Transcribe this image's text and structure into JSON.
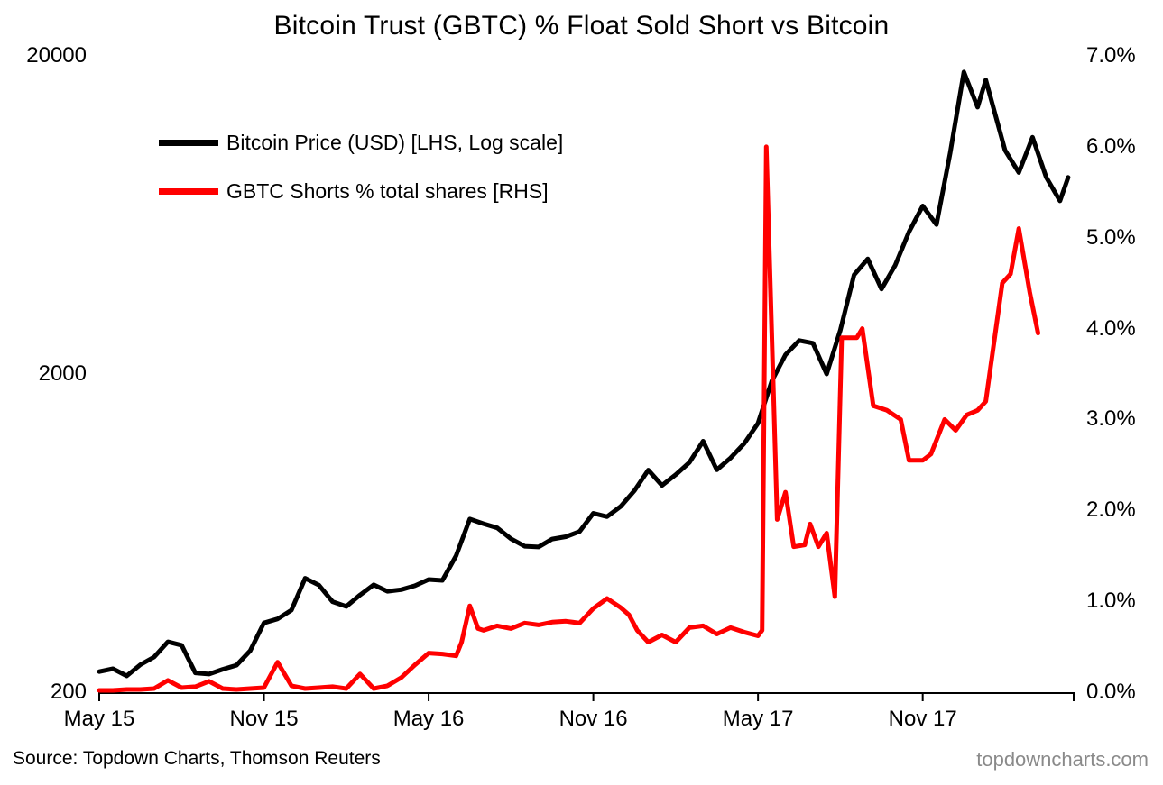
{
  "page": {
    "source_note": "Source: Topdown Charts, Thomson Reuters",
    "watermark": "topdowncharts.com"
  },
  "chart_data": {
    "type": "line",
    "title": "Bitcoin Trust (GBTC) % Float Sold Short vs Bitcoin",
    "grid": false,
    "legend_position": "inside-top-left",
    "colors": {
      "bitcoin": "#000000",
      "gbtc_shorts": "#ff0000",
      "axis": "#000000",
      "watermark": "#8a8a8a"
    },
    "x_axis": {
      "unit": "months-from-May-2015",
      "min": 0,
      "max": 35.5,
      "ticks": [
        {
          "t": 0,
          "label": "May 15"
        },
        {
          "t": 6,
          "label": "Nov 15"
        },
        {
          "t": 12,
          "label": "May 16"
        },
        {
          "t": 18,
          "label": "Nov 16"
        },
        {
          "t": 24,
          "label": "May 17"
        },
        {
          "t": 30,
          "label": "Nov 17"
        }
      ]
    },
    "y_left": {
      "scale": "log",
      "min": 200,
      "max": 20000,
      "ticks": [
        {
          "value": 20000,
          "label": "20000"
        },
        {
          "value": 2000,
          "label": "2000"
        },
        {
          "value": 200,
          "label": "200"
        }
      ]
    },
    "y_right": {
      "scale": "linear",
      "min": 0,
      "max": 7,
      "ticks": [
        {
          "value": 7,
          "label": "7.0%"
        },
        {
          "value": 6,
          "label": "6.0%"
        },
        {
          "value": 5,
          "label": "5.0%"
        },
        {
          "value": 4,
          "label": "4.0%"
        },
        {
          "value": 3,
          "label": "3.0%"
        },
        {
          "value": 2,
          "label": "2.0%"
        },
        {
          "value": 1,
          "label": "1.0%"
        },
        {
          "value": 0,
          "label": "0.0%"
        }
      ]
    },
    "series": [
      {
        "name": "Bitcoin Price (USD) [LHS, Log scale]",
        "axis": "left",
        "color": "#000000",
        "width": 5,
        "points": [
          [
            0,
            232
          ],
          [
            0.5,
            237
          ],
          [
            1,
            225
          ],
          [
            1.5,
            244
          ],
          [
            2,
            258
          ],
          [
            2.5,
            288
          ],
          [
            3,
            281
          ],
          [
            3.5,
            230
          ],
          [
            4,
            228
          ],
          [
            4.5,
            236
          ],
          [
            5,
            243
          ],
          [
            5.5,
            270
          ],
          [
            6,
            330
          ],
          [
            6.5,
            340
          ],
          [
            7,
            362
          ],
          [
            7.5,
            456
          ],
          [
            8,
            434
          ],
          [
            8.5,
            385
          ],
          [
            9,
            372
          ],
          [
            9.5,
            404
          ],
          [
            10,
            435
          ],
          [
            10.5,
            415
          ],
          [
            11,
            420
          ],
          [
            11.5,
            432
          ],
          [
            12,
            452
          ],
          [
            12.5,
            449
          ],
          [
            13,
            537
          ],
          [
            13.5,
            700
          ],
          [
            14,
            677
          ],
          [
            14.5,
            657
          ],
          [
            15,
            607
          ],
          [
            15.5,
            575
          ],
          [
            16,
            572
          ],
          [
            16.5,
            606
          ],
          [
            17,
            616
          ],
          [
            17.5,
            640
          ],
          [
            18,
            730
          ],
          [
            18.5,
            712
          ],
          [
            19,
            767
          ],
          [
            19.5,
            860
          ],
          [
            20,
            998
          ],
          [
            20.5,
            893
          ],
          [
            21,
            965
          ],
          [
            21.5,
            1055
          ],
          [
            22,
            1230
          ],
          [
            22.5,
            1000
          ],
          [
            23,
            1090
          ],
          [
            23.5,
            1210
          ],
          [
            24,
            1400
          ],
          [
            24.5,
            1900
          ],
          [
            25,
            2300
          ],
          [
            25.5,
            2550
          ],
          [
            26,
            2500
          ],
          [
            26.5,
            2000
          ],
          [
            27,
            2750
          ],
          [
            27.5,
            4100
          ],
          [
            28,
            4600
          ],
          [
            28.5,
            3700
          ],
          [
            29,
            4400
          ],
          [
            29.5,
            5600
          ],
          [
            30,
            6750
          ],
          [
            30.5,
            5900
          ],
          [
            31,
            9900
          ],
          [
            31.5,
            17800
          ],
          [
            32,
            13800
          ],
          [
            32.3,
            16800
          ],
          [
            33,
            10100
          ],
          [
            33.5,
            8600
          ],
          [
            34,
            11100
          ],
          [
            34.5,
            8300
          ],
          [
            35,
            7000
          ],
          [
            35.3,
            8300
          ]
        ]
      },
      {
        "name": "GBTC Shorts % total shares [RHS]",
        "axis": "right",
        "color": "#ff0000",
        "width": 5,
        "points": [
          [
            0,
            0.02
          ],
          [
            0.5,
            0.02
          ],
          [
            1,
            0.03
          ],
          [
            1.5,
            0.03
          ],
          [
            2,
            0.04
          ],
          [
            2.5,
            0.13
          ],
          [
            3,
            0.05
          ],
          [
            3.5,
            0.06
          ],
          [
            4,
            0.12
          ],
          [
            4.5,
            0.04
          ],
          [
            5,
            0.03
          ],
          [
            5.5,
            0.04
          ],
          [
            6,
            0.05
          ],
          [
            6.5,
            0.33
          ],
          [
            7,
            0.07
          ],
          [
            7.5,
            0.04
          ],
          [
            8,
            0.05
          ],
          [
            8.5,
            0.06
          ],
          [
            9,
            0.04
          ],
          [
            9.5,
            0.2
          ],
          [
            10,
            0.04
          ],
          [
            10.5,
            0.07
          ],
          [
            11,
            0.16
          ],
          [
            11.5,
            0.3
          ],
          [
            12,
            0.43
          ],
          [
            12.5,
            0.42
          ],
          [
            13,
            0.4
          ],
          [
            13.2,
            0.55
          ],
          [
            13.5,
            0.95
          ],
          [
            13.8,
            0.7
          ],
          [
            14,
            0.68
          ],
          [
            14.5,
            0.73
          ],
          [
            15,
            0.7
          ],
          [
            15.5,
            0.76
          ],
          [
            16,
            0.74
          ],
          [
            16.5,
            0.77
          ],
          [
            17,
            0.78
          ],
          [
            17.5,
            0.76
          ],
          [
            18,
            0.92
          ],
          [
            18.5,
            1.03
          ],
          [
            19,
            0.93
          ],
          [
            19.3,
            0.85
          ],
          [
            19.6,
            0.68
          ],
          [
            20,
            0.55
          ],
          [
            20.5,
            0.63
          ],
          [
            21,
            0.55
          ],
          [
            21.5,
            0.71
          ],
          [
            22,
            0.73
          ],
          [
            22.5,
            0.64
          ],
          [
            23,
            0.71
          ],
          [
            23.5,
            0.66
          ],
          [
            24,
            0.62
          ],
          [
            24.15,
            0.68
          ],
          [
            24.3,
            6.0
          ],
          [
            24.7,
            1.9
          ],
          [
            25,
            2.2
          ],
          [
            25.3,
            1.6
          ],
          [
            25.7,
            1.62
          ],
          [
            25.9,
            1.85
          ],
          [
            26.2,
            1.6
          ],
          [
            26.5,
            1.75
          ],
          [
            26.8,
            1.05
          ],
          [
            27.05,
            3.9
          ],
          [
            27.6,
            3.9
          ],
          [
            27.8,
            4.0
          ],
          [
            28.2,
            3.15
          ],
          [
            28.7,
            3.1
          ],
          [
            29.2,
            3.0
          ],
          [
            29.5,
            2.55
          ],
          [
            30,
            2.55
          ],
          [
            30.3,
            2.62
          ],
          [
            30.8,
            3.0
          ],
          [
            31.2,
            2.88
          ],
          [
            31.6,
            3.05
          ],
          [
            32,
            3.1
          ],
          [
            32.3,
            3.2
          ],
          [
            32.9,
            4.5
          ],
          [
            33.2,
            4.6
          ],
          [
            33.5,
            5.1
          ],
          [
            33.9,
            4.4
          ],
          [
            34.2,
            3.95
          ]
        ]
      }
    ]
  }
}
